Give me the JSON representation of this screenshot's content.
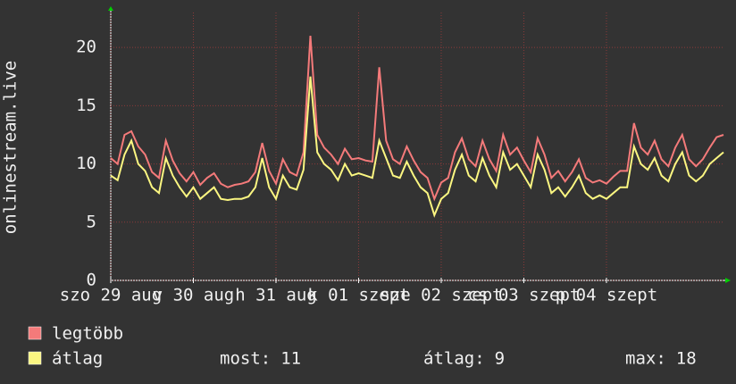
{
  "chart_data": {
    "type": "line",
    "y_label": "onlinestream.live",
    "xlim": [
      0,
      89
    ],
    "xticks": [
      {
        "value": 0,
        "label": "szo 29 aug"
      },
      {
        "value": 12,
        "label": "v 30 aug"
      },
      {
        "value": 24,
        "label": "h 31 aug"
      },
      {
        "value": 36,
        "label": "k 01 szept"
      },
      {
        "value": 48,
        "label": "sze 02 szept"
      },
      {
        "value": 60,
        "label": "cs 03 szept"
      },
      {
        "value": 72,
        "label": "p 04 szept"
      }
    ],
    "ylim": [
      0,
      23
    ],
    "yticks": [
      0,
      5,
      10,
      15,
      20
    ],
    "grid": true,
    "series": [
      {
        "name": "legtöbb",
        "color": "#f47a7a",
        "values": [
          10.5,
          10,
          12.5,
          12.8,
          11.5,
          10.8,
          9.3,
          8.8,
          12,
          10.3,
          9.2,
          8.5,
          9.3,
          8.2,
          8.8,
          9.2,
          8.3,
          8,
          8.2,
          8.3,
          8.5,
          9.3,
          11.8,
          9.4,
          8.3,
          10.4,
          9.3,
          9,
          11,
          21,
          12.5,
          11.4,
          10.8,
          10,
          11.3,
          10.4,
          10.5,
          10.3,
          10.2,
          18.3,
          12,
          10.4,
          10,
          11.5,
          10.3,
          9.3,
          8.8,
          7,
          8.4,
          8.8,
          11,
          12.2,
          10.4,
          9.8,
          12,
          10.4,
          9.4,
          12.5,
          10.8,
          11.4,
          10.3,
          9.3,
          12.2,
          10.8,
          8.8,
          9.4,
          8.5,
          9.3,
          10.4,
          8.8,
          8.4,
          8.6,
          8.3,
          8.9,
          9.4,
          9.4,
          13.5,
          11.4,
          10.8,
          12,
          10.4,
          9.8,
          11.4,
          12.5,
          10.4,
          9.8,
          10.4,
          11.4,
          12.3,
          12.5
        ]
      },
      {
        "name": "átlag",
        "color": "#fbf681",
        "values": [
          9,
          8.6,
          10.8,
          12,
          10,
          9.4,
          8,
          7.5,
          10.5,
          9,
          8,
          7.2,
          8,
          7,
          7.5,
          8,
          7,
          6.9,
          7,
          7,
          7.2,
          8,
          10.5,
          8,
          7,
          9,
          8,
          7.8,
          9.5,
          17.5,
          11,
          10,
          9.5,
          8.6,
          10,
          9,
          9.2,
          9,
          8.8,
          12,
          10.5,
          9,
          8.8,
          10.2,
          9,
          8,
          7.5,
          5.6,
          7,
          7.5,
          9.5,
          10.8,
          9,
          8.5,
          10.5,
          9,
          8,
          11,
          9.5,
          10,
          9,
          8,
          10.8,
          9.5,
          7.5,
          8,
          7.2,
          8,
          9,
          7.5,
          7,
          7.3,
          7,
          7.5,
          8,
          8,
          11.5,
          10,
          9.5,
          10.5,
          9,
          8.5,
          10,
          11,
          9,
          8.5,
          9,
          10,
          10.5,
          11
        ]
      }
    ],
    "stats": [
      {
        "label": "most:",
        "value": 11
      },
      {
        "label": "átlag:",
        "value": 9
      },
      {
        "label": "max:",
        "value": 18
      }
    ]
  }
}
